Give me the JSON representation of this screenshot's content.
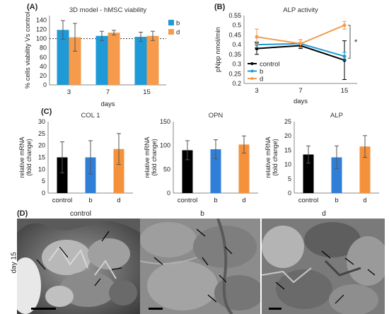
{
  "colors": {
    "blue": "#1f9ad6",
    "orange": "#f59b4b",
    "black": "#000000",
    "mid_blue": "#2f7fd8",
    "orange_c": "#f5913b"
  },
  "panels": {
    "A": "(A)",
    "B": "(B)",
    "C": "(C)",
    "D": "(D)"
  },
  "chart_data": [
    {
      "id": "A",
      "type": "bar",
      "title": "3D model - hMSC viability",
      "xlabel": "days",
      "ylabel": "% cells viability Vs control",
      "categories": [
        "3",
        "7",
        "15"
      ],
      "ylim": [
        0,
        150
      ],
      "yticks": [
        "0",
        "20",
        "40",
        "60",
        "80",
        "100",
        "120",
        "140"
      ],
      "reference_line": 100,
      "legend": [
        "b",
        "d"
      ],
      "series": [
        {
          "name": "b",
          "values": [
            119,
            106,
            104
          ],
          "errors": [
            20,
            10,
            10
          ]
        },
        {
          "name": "d",
          "values": [
            103,
            113,
            106
          ],
          "errors": [
            30,
            5,
            10
          ]
        }
      ]
    },
    {
      "id": "B",
      "type": "line",
      "title": "ALP activity",
      "xlabel": "days",
      "ylabel": "pNpp nmol/min",
      "categories": [
        "3",
        "7",
        "15"
      ],
      "ylim": [
        0.2,
        0.55
      ],
      "yticks": [
        "0.2",
        "0.25",
        "0.3",
        "0.35",
        "0.4",
        "0.45",
        "0.5",
        "0.55"
      ],
      "legend": [
        "control",
        "b",
        "d"
      ],
      "significance": "*",
      "series": [
        {
          "name": "control",
          "values": [
            0.38,
            0.395,
            0.32
          ],
          "errors": [
            0.03,
            0.015,
            0.1
          ]
        },
        {
          "name": "b",
          "values": [
            0.4,
            0.405,
            0.34
          ],
          "errors": [
            0.015,
            0.02,
            0.02
          ]
        },
        {
          "name": "d",
          "values": [
            0.44,
            0.405,
            0.5
          ],
          "errors": [
            0.04,
            0.02,
            0.02
          ]
        }
      ]
    },
    {
      "id": "C1",
      "type": "bar",
      "title": "COL 1",
      "ylabel": "relative mRNA (fold change)",
      "categories": [
        "control",
        "b",
        "d"
      ],
      "ylim": [
        0,
        30
      ],
      "yticks": [
        "0",
        "5",
        "10",
        "15",
        "20",
        "25",
        "30"
      ],
      "values": [
        15,
        15,
        18.5
      ],
      "errors": [
        6.5,
        7,
        6.5
      ]
    },
    {
      "id": "C2",
      "type": "bar",
      "title": "OPN",
      "ylabel": "relative mRNA (fold change)",
      "categories": [
        "control",
        "b",
        "d"
      ],
      "ylim": [
        0,
        150
      ],
      "yticks": [
        "0",
        "50",
        "100",
        "150"
      ],
      "values": [
        90,
        92,
        102
      ],
      "errors": [
        20,
        20,
        18
      ]
    },
    {
      "id": "C3",
      "type": "bar",
      "title": "ALP",
      "ylabel": "relative mRNA (fold change)",
      "categories": [
        "control",
        "b",
        "d"
      ],
      "ylim": [
        0,
        25
      ],
      "yticks": [
        "0",
        "5",
        "10",
        "15",
        "20",
        "25"
      ],
      "values": [
        13.5,
        12.5,
        16.3
      ],
      "errors": [
        3,
        4,
        3.8
      ]
    }
  ],
  "sem": {
    "titles": [
      "control",
      "b",
      "d"
    ],
    "row_label": "day 15"
  }
}
